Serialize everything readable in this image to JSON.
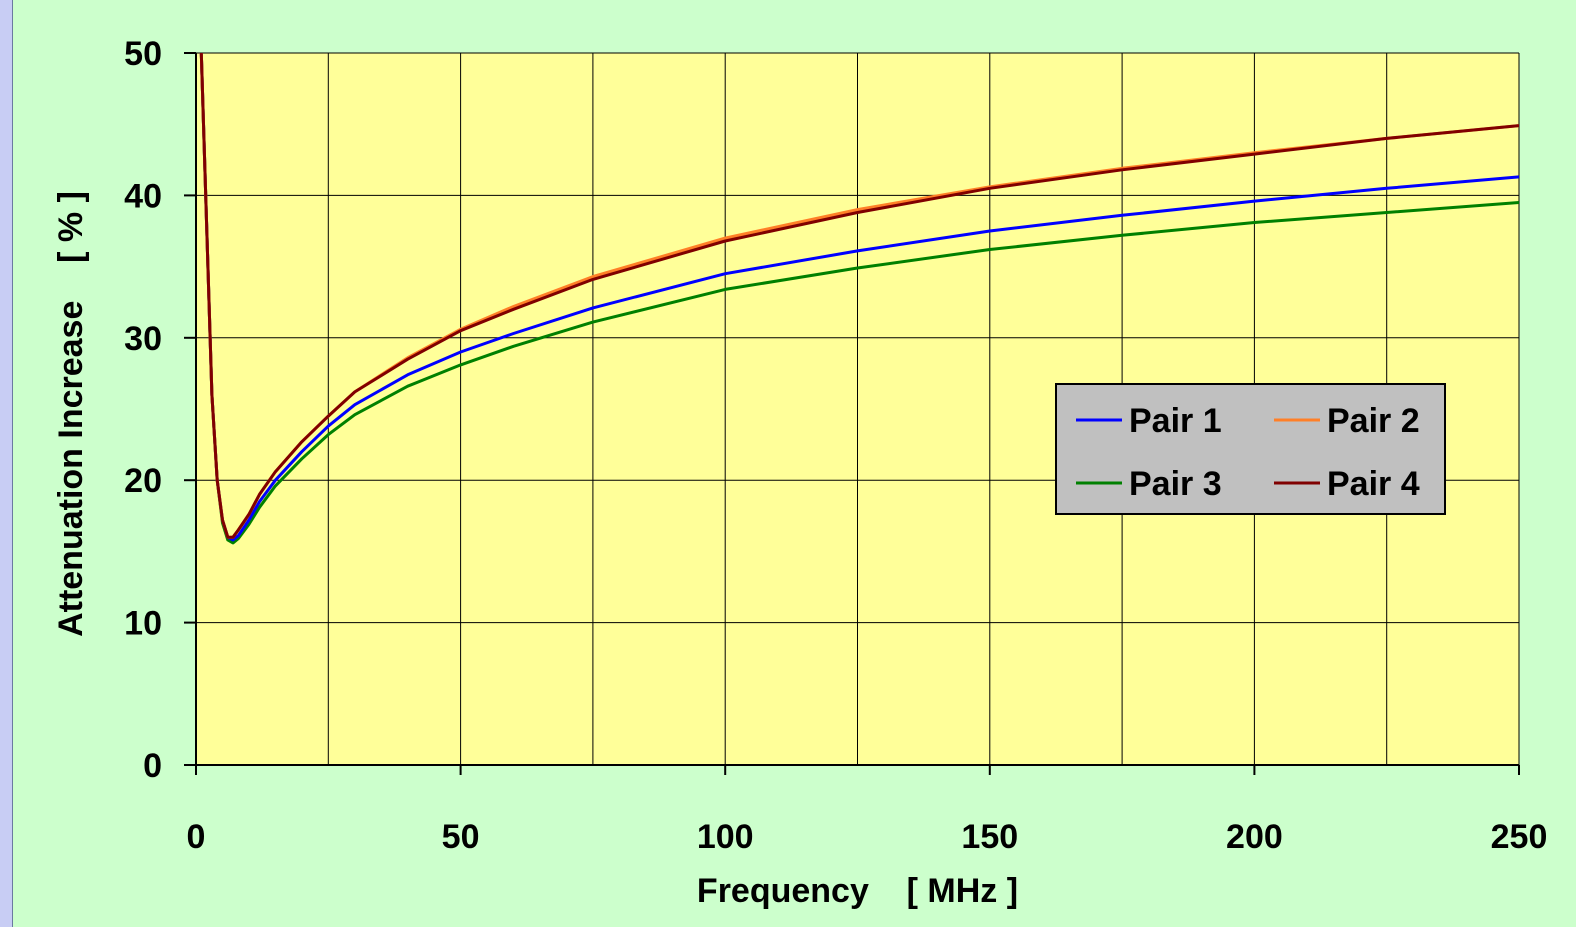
{
  "chart_data": {
    "type": "line",
    "xlabel": "Frequency    [ MHz ]",
    "ylabel": "Attenuation Increase    [ % ]",
    "xlim": [
      0,
      250
    ],
    "ylim": [
      0,
      50
    ],
    "x_ticks": [
      0,
      50,
      100,
      150,
      200,
      250
    ],
    "y_ticks": [
      0,
      10,
      20,
      30,
      40,
      50
    ],
    "x_gridlines": [
      0,
      25,
      50,
      75,
      100,
      125,
      150,
      175,
      200,
      225,
      250
    ],
    "grid": true,
    "legend_position": "center-right",
    "colors": {
      "plot_background": "#ffff99",
      "chart_background": "#ccffcc",
      "legend_background": "#c0c0c0"
    },
    "series": [
      {
        "name": "Pair 1",
        "color": "#0000ff",
        "x": [
          1,
          2,
          3,
          4,
          5,
          6,
          7,
          8,
          10,
          12,
          15,
          20,
          25,
          30,
          40,
          50,
          60,
          75,
          100,
          125,
          150,
          175,
          200,
          225,
          250
        ],
        "y": [
          50,
          38,
          26,
          20,
          17.2,
          16.0,
          15.8,
          16.1,
          17.2,
          18.5,
          20.0,
          22.0,
          23.8,
          25.3,
          27.4,
          29.0,
          30.3,
          32.1,
          34.5,
          36.1,
          37.5,
          38.6,
          39.6,
          40.5,
          41.3
        ]
      },
      {
        "name": "Pair 2",
        "color": "#ff7f27",
        "x": [
          1,
          2,
          3,
          4,
          5,
          6,
          7,
          8,
          10,
          12,
          15,
          20,
          25,
          30,
          40,
          50,
          60,
          75,
          100,
          125,
          150,
          175,
          200,
          225,
          250
        ],
        "y": [
          50,
          38,
          26,
          20,
          17.2,
          16.0,
          16.0,
          16.5,
          17.6,
          19.0,
          20.6,
          22.7,
          24.5,
          26.2,
          28.6,
          30.6,
          32.2,
          34.3,
          37.0,
          39.0,
          40.6,
          41.9,
          43.0,
          44.0,
          44.9
        ]
      },
      {
        "name": "Pair 3",
        "color": "#008000",
        "x": [
          1,
          2,
          3,
          4,
          5,
          6,
          7,
          8,
          10,
          12,
          15,
          20,
          25,
          30,
          40,
          50,
          60,
          75,
          100,
          125,
          150,
          175,
          200,
          225,
          250
        ],
        "y": [
          50,
          38,
          26,
          20,
          17.0,
          15.8,
          15.6,
          15.9,
          16.9,
          18.1,
          19.6,
          21.5,
          23.2,
          24.6,
          26.6,
          28.1,
          29.4,
          31.1,
          33.4,
          34.9,
          36.2,
          37.2,
          38.1,
          38.8,
          39.5
        ]
      },
      {
        "name": "Pair 4",
        "color": "#800000",
        "x": [
          1,
          2,
          3,
          4,
          5,
          6,
          7,
          8,
          10,
          12,
          15,
          20,
          25,
          30,
          40,
          50,
          60,
          75,
          100,
          125,
          150,
          175,
          200,
          225,
          250
        ],
        "y": [
          50,
          38,
          26,
          20,
          17.2,
          16.0,
          16.0,
          16.5,
          17.6,
          19.0,
          20.6,
          22.7,
          24.5,
          26.2,
          28.5,
          30.5,
          32.0,
          34.1,
          36.8,
          38.8,
          40.5,
          41.8,
          42.9,
          44.0,
          44.9
        ]
      }
    ]
  }
}
